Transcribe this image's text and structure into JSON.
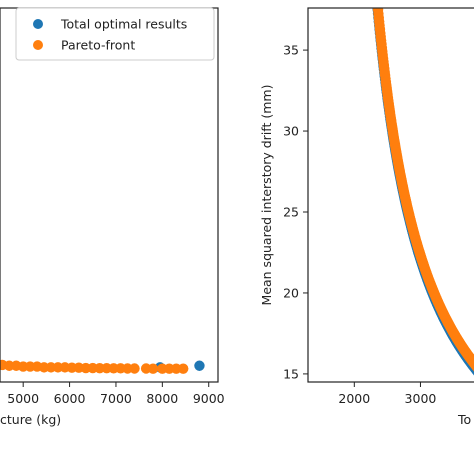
{
  "chart_data": [
    {
      "type": "scatter",
      "xlabel": "cture (kg)",
      "ylabel": "",
      "xlim": [
        4500,
        9200
      ],
      "ylim": [
        14.5,
        37.5
      ],
      "x_ticks": [
        {
          "value": 5000,
          "label": "5000"
        },
        {
          "value": 6000,
          "label": "6000"
        },
        {
          "value": 7000,
          "label": "7000"
        },
        {
          "value": 8000,
          "label": "8000"
        },
        {
          "value": 9000,
          "label": "9000"
        }
      ],
      "legend": {
        "placement": "top-right",
        "entries": [
          {
            "label": "Total optimal results",
            "color": "#1f77b4"
          },
          {
            "label": "Pareto-front",
            "color": "#ff7f0e"
          }
        ]
      },
      "series": [
        {
          "color": "#1f77b4",
          "points": [
            [
              7950,
              15.4
            ],
            [
              8800,
              15.5
            ]
          ]
        },
        {
          "color": "#ff7f0e",
          "points": [
            [
              4550,
              15.55
            ],
            [
              4700,
              15.5
            ],
            [
              4850,
              15.5
            ],
            [
              5000,
              15.45
            ],
            [
              5150,
              15.45
            ],
            [
              5300,
              15.45
            ],
            [
              5450,
              15.4
            ],
            [
              5600,
              15.4
            ],
            [
              5750,
              15.4
            ],
            [
              5900,
              15.4
            ],
            [
              6050,
              15.38
            ],
            [
              6200,
              15.38
            ],
            [
              6350,
              15.36
            ],
            [
              6500,
              15.36
            ],
            [
              6650,
              15.35
            ],
            [
              6800,
              15.35
            ],
            [
              6950,
              15.34
            ],
            [
              7100,
              15.34
            ],
            [
              7250,
              15.33
            ],
            [
              7400,
              15.33
            ],
            [
              7650,
              15.33
            ],
            [
              7800,
              15.32
            ],
            [
              8000,
              15.32
            ],
            [
              8150,
              15.32
            ],
            [
              8300,
              15.32
            ],
            [
              8450,
              15.32
            ]
          ]
        }
      ]
    },
    {
      "type": "scatter",
      "xlabel": "To",
      "ylabel": "Mean squared interstory drift (mm)",
      "xlim": [
        1300,
        3900
      ],
      "ylim": [
        14.5,
        37.6
      ],
      "x_ticks": [
        {
          "value": 2000,
          "label": "2000"
        },
        {
          "value": 3000,
          "label": "3000"
        }
      ],
      "y_ticks": [
        {
          "value": 15,
          "label": "15"
        },
        {
          "value": 20,
          "label": "20"
        },
        {
          "value": 25,
          "label": "25"
        },
        {
          "value": 30,
          "label": "30"
        },
        {
          "value": 35,
          "label": "35"
        }
      ],
      "curve": {
        "a": 25900,
        "b": 1585,
        "c": 3.9,
        "x_min": 1600,
        "x_max": 3900
      },
      "series": [
        {
          "color": "#1f77b4",
          "offset_y": -0.12
        },
        {
          "color": "#ff7f0e",
          "offset_y": 0.12
        }
      ]
    }
  ]
}
